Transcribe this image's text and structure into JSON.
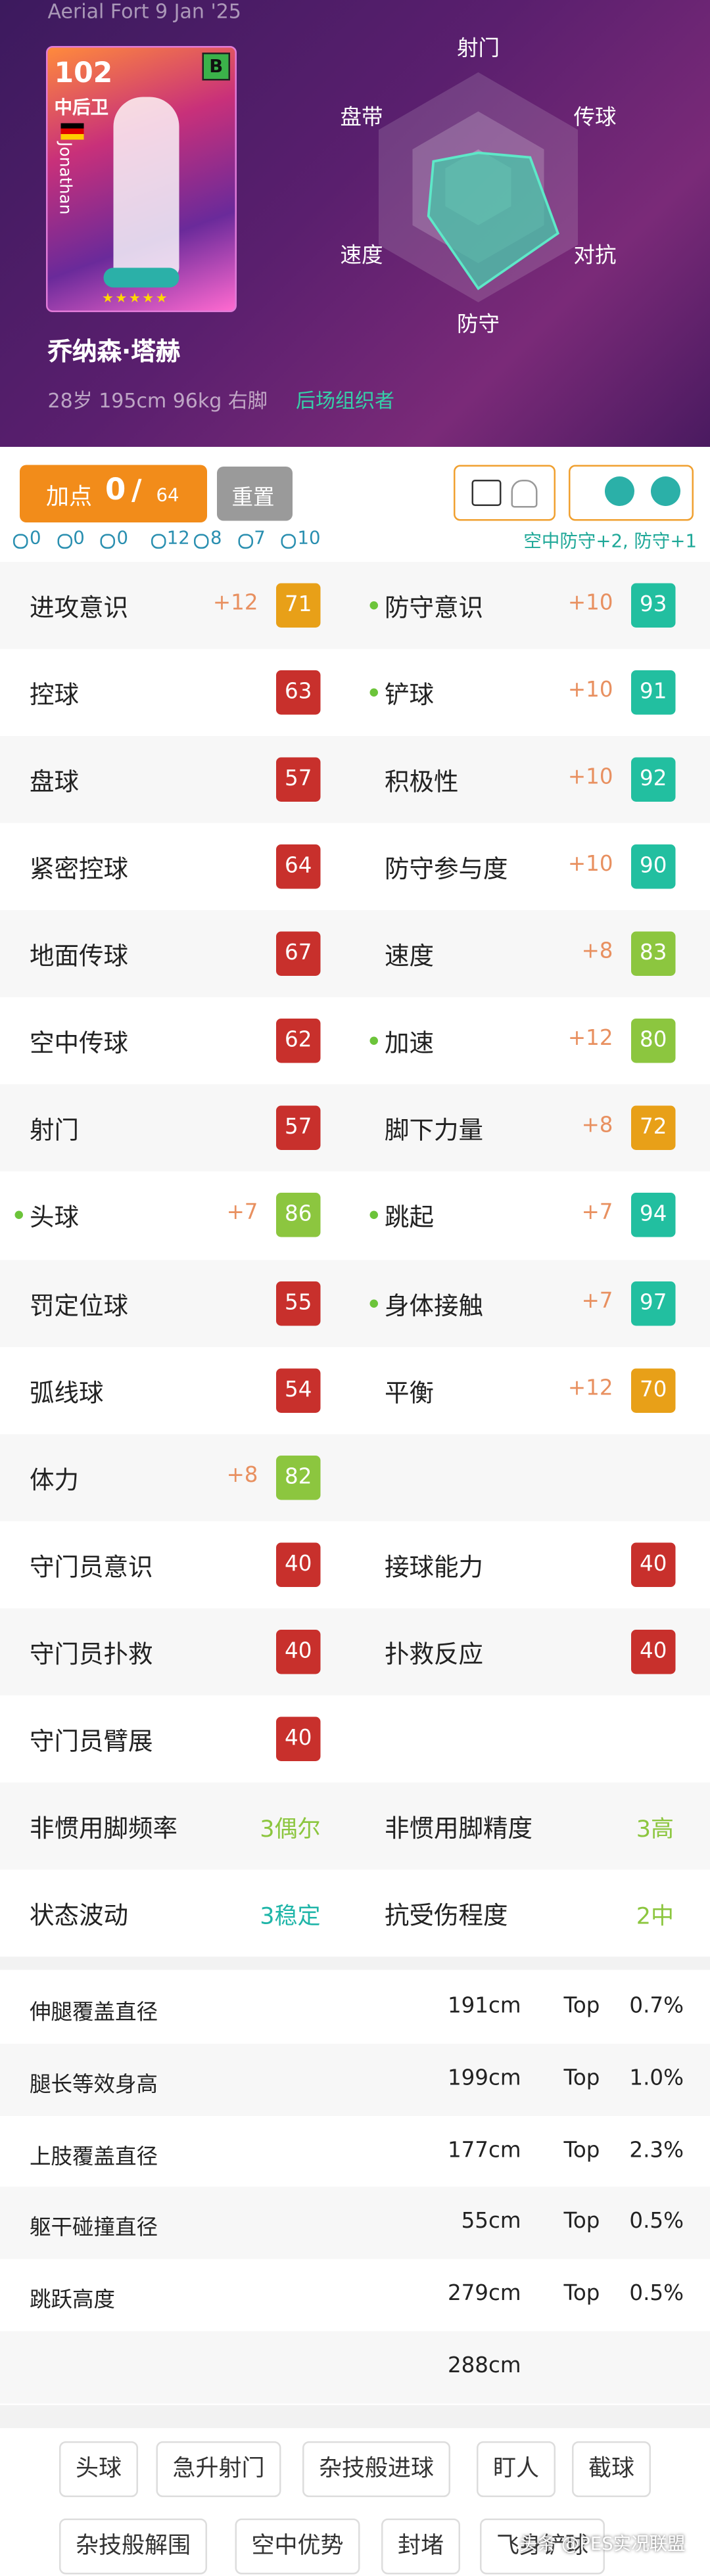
{
  "header": {
    "date_label": "Aerial Fort 9 Jan '25",
    "card": {
      "rating": "102",
      "position": "中后卫",
      "grade": "B",
      "name_vertical": "Jonathan"
    },
    "player_name": "乔纳森·塔赫",
    "info": "28岁 195cm 96kg 右脚",
    "play_style": "后场组织者"
  },
  "radar": {
    "rlim": [
      0,
      100
    ],
    "axes": [
      {
        "label": "射门",
        "value": 30
      },
      {
        "label": "传球",
        "value": 52
      },
      {
        "label": "对抗",
        "value": 80
      },
      {
        "label": "防守",
        "value": 88
      },
      {
        "label": "速度",
        "value": 50
      },
      {
        "label": "盘带",
        "value": 45
      }
    ]
  },
  "boost": {
    "label": "加点",
    "spent": 0,
    "separator": "/",
    "total": 64,
    "reset": "重置"
  },
  "skill_counts": [
    0,
    0,
    0,
    12,
    8,
    7,
    10
  ],
  "bonus_note": "空中防守+2, 防守+1",
  "stats": {
    "rows": [
      [
        {
          "name": "进攻意识",
          "bonus": "+12",
          "value": 71,
          "highlight": false
        },
        {
          "name": "防守意识",
          "bonus": "+10",
          "value": 93,
          "highlight": true
        }
      ],
      [
        {
          "name": "控球",
          "value": 63,
          "highlight": false
        },
        {
          "name": "铲球",
          "bonus": "+10",
          "value": 91,
          "highlight": true
        }
      ],
      [
        {
          "name": "盘球",
          "value": 57,
          "highlight": false
        },
        {
          "name": "积极性",
          "bonus": "+10",
          "value": 92,
          "highlight": false
        }
      ],
      [
        {
          "name": "紧密控球",
          "value": 64,
          "highlight": false
        },
        {
          "name": "防守参与度",
          "bonus": "+10",
          "value": 90,
          "highlight": false
        }
      ],
      [
        {
          "name": "地面传球",
          "value": 67,
          "highlight": false
        },
        {
          "name": "速度",
          "bonus": "+8",
          "value": 83,
          "highlight": false
        }
      ],
      [
        {
          "name": "空中传球",
          "value": 62,
          "highlight": false
        },
        {
          "name": "加速",
          "bonus": "+12",
          "value": 80,
          "highlight": true
        }
      ],
      [
        {
          "name": "射门",
          "value": 57,
          "highlight": false
        },
        {
          "name": "脚下力量",
          "bonus": "+8",
          "value": 72,
          "highlight": false
        }
      ],
      [
        {
          "name": "头球",
          "bonus": "+7",
          "value": 86,
          "highlight": true
        },
        {
          "name": "跳起",
          "bonus": "+7",
          "value": 94,
          "highlight": true
        }
      ],
      [
        {
          "name": "罚定位球",
          "value": 55,
          "highlight": false
        },
        {
          "name": "身体接触",
          "bonus": "+7",
          "value": 97,
          "highlight": true
        }
      ],
      [
        {
          "name": "弧线球",
          "value": 54,
          "highlight": false
        },
        {
          "name": "平衡",
          "bonus": "+12",
          "value": 70,
          "highlight": false
        }
      ],
      [
        {
          "name": "体力",
          "bonus": "+8",
          "value": 82,
          "highlight": false
        },
        null
      ],
      [
        {
          "name": "守门员意识",
          "value": 40,
          "highlight": false
        },
        {
          "name": "接球能力",
          "value": 40,
          "highlight": false
        }
      ],
      [
        {
          "name": "守门员扑救",
          "value": 40,
          "highlight": false
        },
        {
          "name": "扑救反应",
          "value": 40,
          "highlight": false
        }
      ],
      [
        {
          "name": "守门员臂展",
          "value": 40,
          "highlight": false
        },
        null
      ]
    ]
  },
  "traits": {
    "rows": [
      [
        {
          "name": "非惯用脚频率",
          "value": "3偶尔",
          "color": "#8cc63f"
        },
        {
          "name": "非惯用脚精度",
          "value": "3高",
          "color": "#8cc63f"
        }
      ],
      [
        {
          "name": "状态波动",
          "value": "3稳定",
          "color": "#1fb5a8"
        },
        {
          "name": "抗受伤程度",
          "value": "2中",
          "color": "#8cc63f"
        }
      ]
    ]
  },
  "measurements": {
    "rows": [
      {
        "name": "伸腿覆盖直径",
        "value": "191cm",
        "top_label": "Top",
        "percentile": "0.7%"
      },
      {
        "name": "腿长等效身高",
        "value": "199cm",
        "top_label": "Top",
        "percentile": "1.0%"
      },
      {
        "name": "上肢覆盖直径",
        "value": "177cm",
        "top_label": "Top",
        "percentile": "2.3%"
      },
      {
        "name": "躯干碰撞直径",
        "value": "55cm",
        "top_label": "Top",
        "percentile": "0.5%"
      },
      {
        "name": "跳跃高度",
        "value": "279cm",
        "top_label": "Top",
        "percentile": "0.5%"
      },
      {
        "value": "288cm"
      }
    ]
  },
  "skills": {
    "rows": [
      [
        "头球",
        "急升射门",
        "杂技般进球",
        "盯人",
        "截球"
      ],
      [
        "杂技般解围",
        "空中优势",
        "封堵",
        "飞身铲球"
      ]
    ]
  },
  "watermark": "头条 @PES实况联盟"
}
